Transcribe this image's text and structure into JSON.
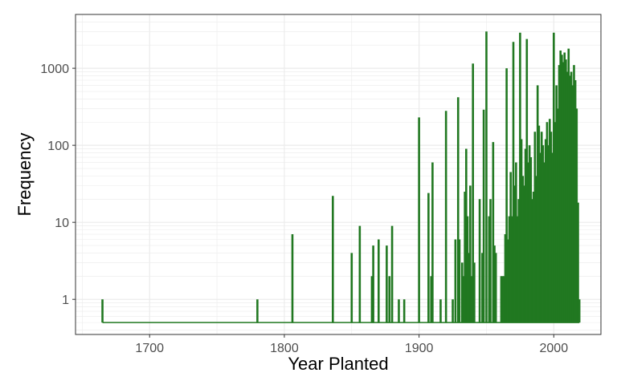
{
  "chart_data": {
    "type": "bar",
    "xlabel": "Year Planted",
    "ylabel": "Frequency",
    "xlim": [
      1645,
      2035
    ],
    "ylim": [
      0.35,
      5000
    ],
    "y_scale": "log10",
    "x_ticks": [
      1700,
      1800,
      1900,
      2000
    ],
    "x_tick_labels": [
      "1700",
      "1800",
      "1900",
      "2000"
    ],
    "y_ticks": [
      1,
      10,
      100,
      1000
    ],
    "y_tick_labels": [
      "1",
      "10",
      "100",
      "1000"
    ],
    "baseline": 0.5,
    "grid": true,
    "legend": "none",
    "colors": {
      "bar": "#217821",
      "grid": "#ebebeb",
      "panel_border": "#333333"
    },
    "points": [
      {
        "x": 1665,
        "y": 1
      },
      {
        "x": 1780,
        "y": 1
      },
      {
        "x": 1806,
        "y": 7
      },
      {
        "x": 1836,
        "y": 22
      },
      {
        "x": 1850,
        "y": 4
      },
      {
        "x": 1856,
        "y": 9
      },
      {
        "x": 1865,
        "y": 2
      },
      {
        "x": 1866,
        "y": 5
      },
      {
        "x": 1870,
        "y": 6
      },
      {
        "x": 1876,
        "y": 5
      },
      {
        "x": 1878,
        "y": 2
      },
      {
        "x": 1880,
        "y": 9
      },
      {
        "x": 1885,
        "y": 1
      },
      {
        "x": 1889,
        "y": 1
      },
      {
        "x": 1900,
        "y": 230
      },
      {
        "x": 1907,
        "y": 24
      },
      {
        "x": 1909,
        "y": 2
      },
      {
        "x": 1910,
        "y": 60
      },
      {
        "x": 1916,
        "y": 1
      },
      {
        "x": 1920,
        "y": 280
      },
      {
        "x": 1925,
        "y": 1
      },
      {
        "x": 1927,
        "y": 6
      },
      {
        "x": 1929,
        "y": 420
      },
      {
        "x": 1930,
        "y": 6
      },
      {
        "x": 1932,
        "y": 3
      },
      {
        "x": 1933,
        "y": 2
      },
      {
        "x": 1934,
        "y": 25
      },
      {
        "x": 1935,
        "y": 90
      },
      {
        "x": 1936,
        "y": 12
      },
      {
        "x": 1937,
        "y": 4
      },
      {
        "x": 1938,
        "y": 30
      },
      {
        "x": 1939,
        "y": 2
      },
      {
        "x": 1940,
        "y": 1150
      },
      {
        "x": 1941,
        "y": 3
      },
      {
        "x": 1945,
        "y": 20
      },
      {
        "x": 1947,
        "y": 4
      },
      {
        "x": 1948,
        "y": 290
      },
      {
        "x": 1950,
        "y": 3000
      },
      {
        "x": 1952,
        "y": 12
      },
      {
        "x": 1953,
        "y": 20
      },
      {
        "x": 1955,
        "y": 110
      },
      {
        "x": 1956,
        "y": 5
      },
      {
        "x": 1957,
        "y": 4
      },
      {
        "x": 1961,
        "y": 2
      },
      {
        "x": 1962,
        "y": 2
      },
      {
        "x": 1963,
        "y": 2
      },
      {
        "x": 1964,
        "y": 7
      },
      {
        "x": 1965,
        "y": 1000
      },
      {
        "x": 1966,
        "y": 6
      },
      {
        "x": 1967,
        "y": 12
      },
      {
        "x": 1968,
        "y": 45
      },
      {
        "x": 1969,
        "y": 12
      },
      {
        "x": 1970,
        "y": 2200
      },
      {
        "x": 1971,
        "y": 30
      },
      {
        "x": 1972,
        "y": 60
      },
      {
        "x": 1973,
        "y": 12
      },
      {
        "x": 1974,
        "y": 20
      },
      {
        "x": 1975,
        "y": 2900
      },
      {
        "x": 1976,
        "y": 120
      },
      {
        "x": 1977,
        "y": 40
      },
      {
        "x": 1978,
        "y": 30
      },
      {
        "x": 1979,
        "y": 90
      },
      {
        "x": 1980,
        "y": 2400
      },
      {
        "x": 1981,
        "y": 60
      },
      {
        "x": 1982,
        "y": 100
      },
      {
        "x": 1983,
        "y": 70
      },
      {
        "x": 1984,
        "y": 20
      },
      {
        "x": 1985,
        "y": 25
      },
      {
        "x": 1986,
        "y": 150
      },
      {
        "x": 1987,
        "y": 40
      },
      {
        "x": 1988,
        "y": 600
      },
      {
        "x": 1989,
        "y": 180
      },
      {
        "x": 1990,
        "y": 80
      },
      {
        "x": 1991,
        "y": 150
      },
      {
        "x": 1992,
        "y": 100
      },
      {
        "x": 1993,
        "y": 60
      },
      {
        "x": 1994,
        "y": 120
      },
      {
        "x": 1995,
        "y": 200
      },
      {
        "x": 1996,
        "y": 100
      },
      {
        "x": 1997,
        "y": 220
      },
      {
        "x": 1998,
        "y": 150
      },
      {
        "x": 1999,
        "y": 80
      },
      {
        "x": 2000,
        "y": 2900
      },
      {
        "x": 2001,
        "y": 200
      },
      {
        "x": 2002,
        "y": 600
      },
      {
        "x": 2003,
        "y": 300
      },
      {
        "x": 2004,
        "y": 1100
      },
      {
        "x": 2005,
        "y": 1700
      },
      {
        "x": 2006,
        "y": 1500
      },
      {
        "x": 2007,
        "y": 1200
      },
      {
        "x": 2008,
        "y": 1600
      },
      {
        "x": 2009,
        "y": 1300
      },
      {
        "x": 2010,
        "y": 900
      },
      {
        "x": 2011,
        "y": 1800
      },
      {
        "x": 2012,
        "y": 800
      },
      {
        "x": 2013,
        "y": 900
      },
      {
        "x": 2014,
        "y": 600
      },
      {
        "x": 2015,
        "y": 1100
      },
      {
        "x": 2016,
        "y": 700
      },
      {
        "x": 2017,
        "y": 300
      },
      {
        "x": 2018,
        "y": 18
      },
      {
        "x": 2019,
        "y": 1
      }
    ]
  }
}
